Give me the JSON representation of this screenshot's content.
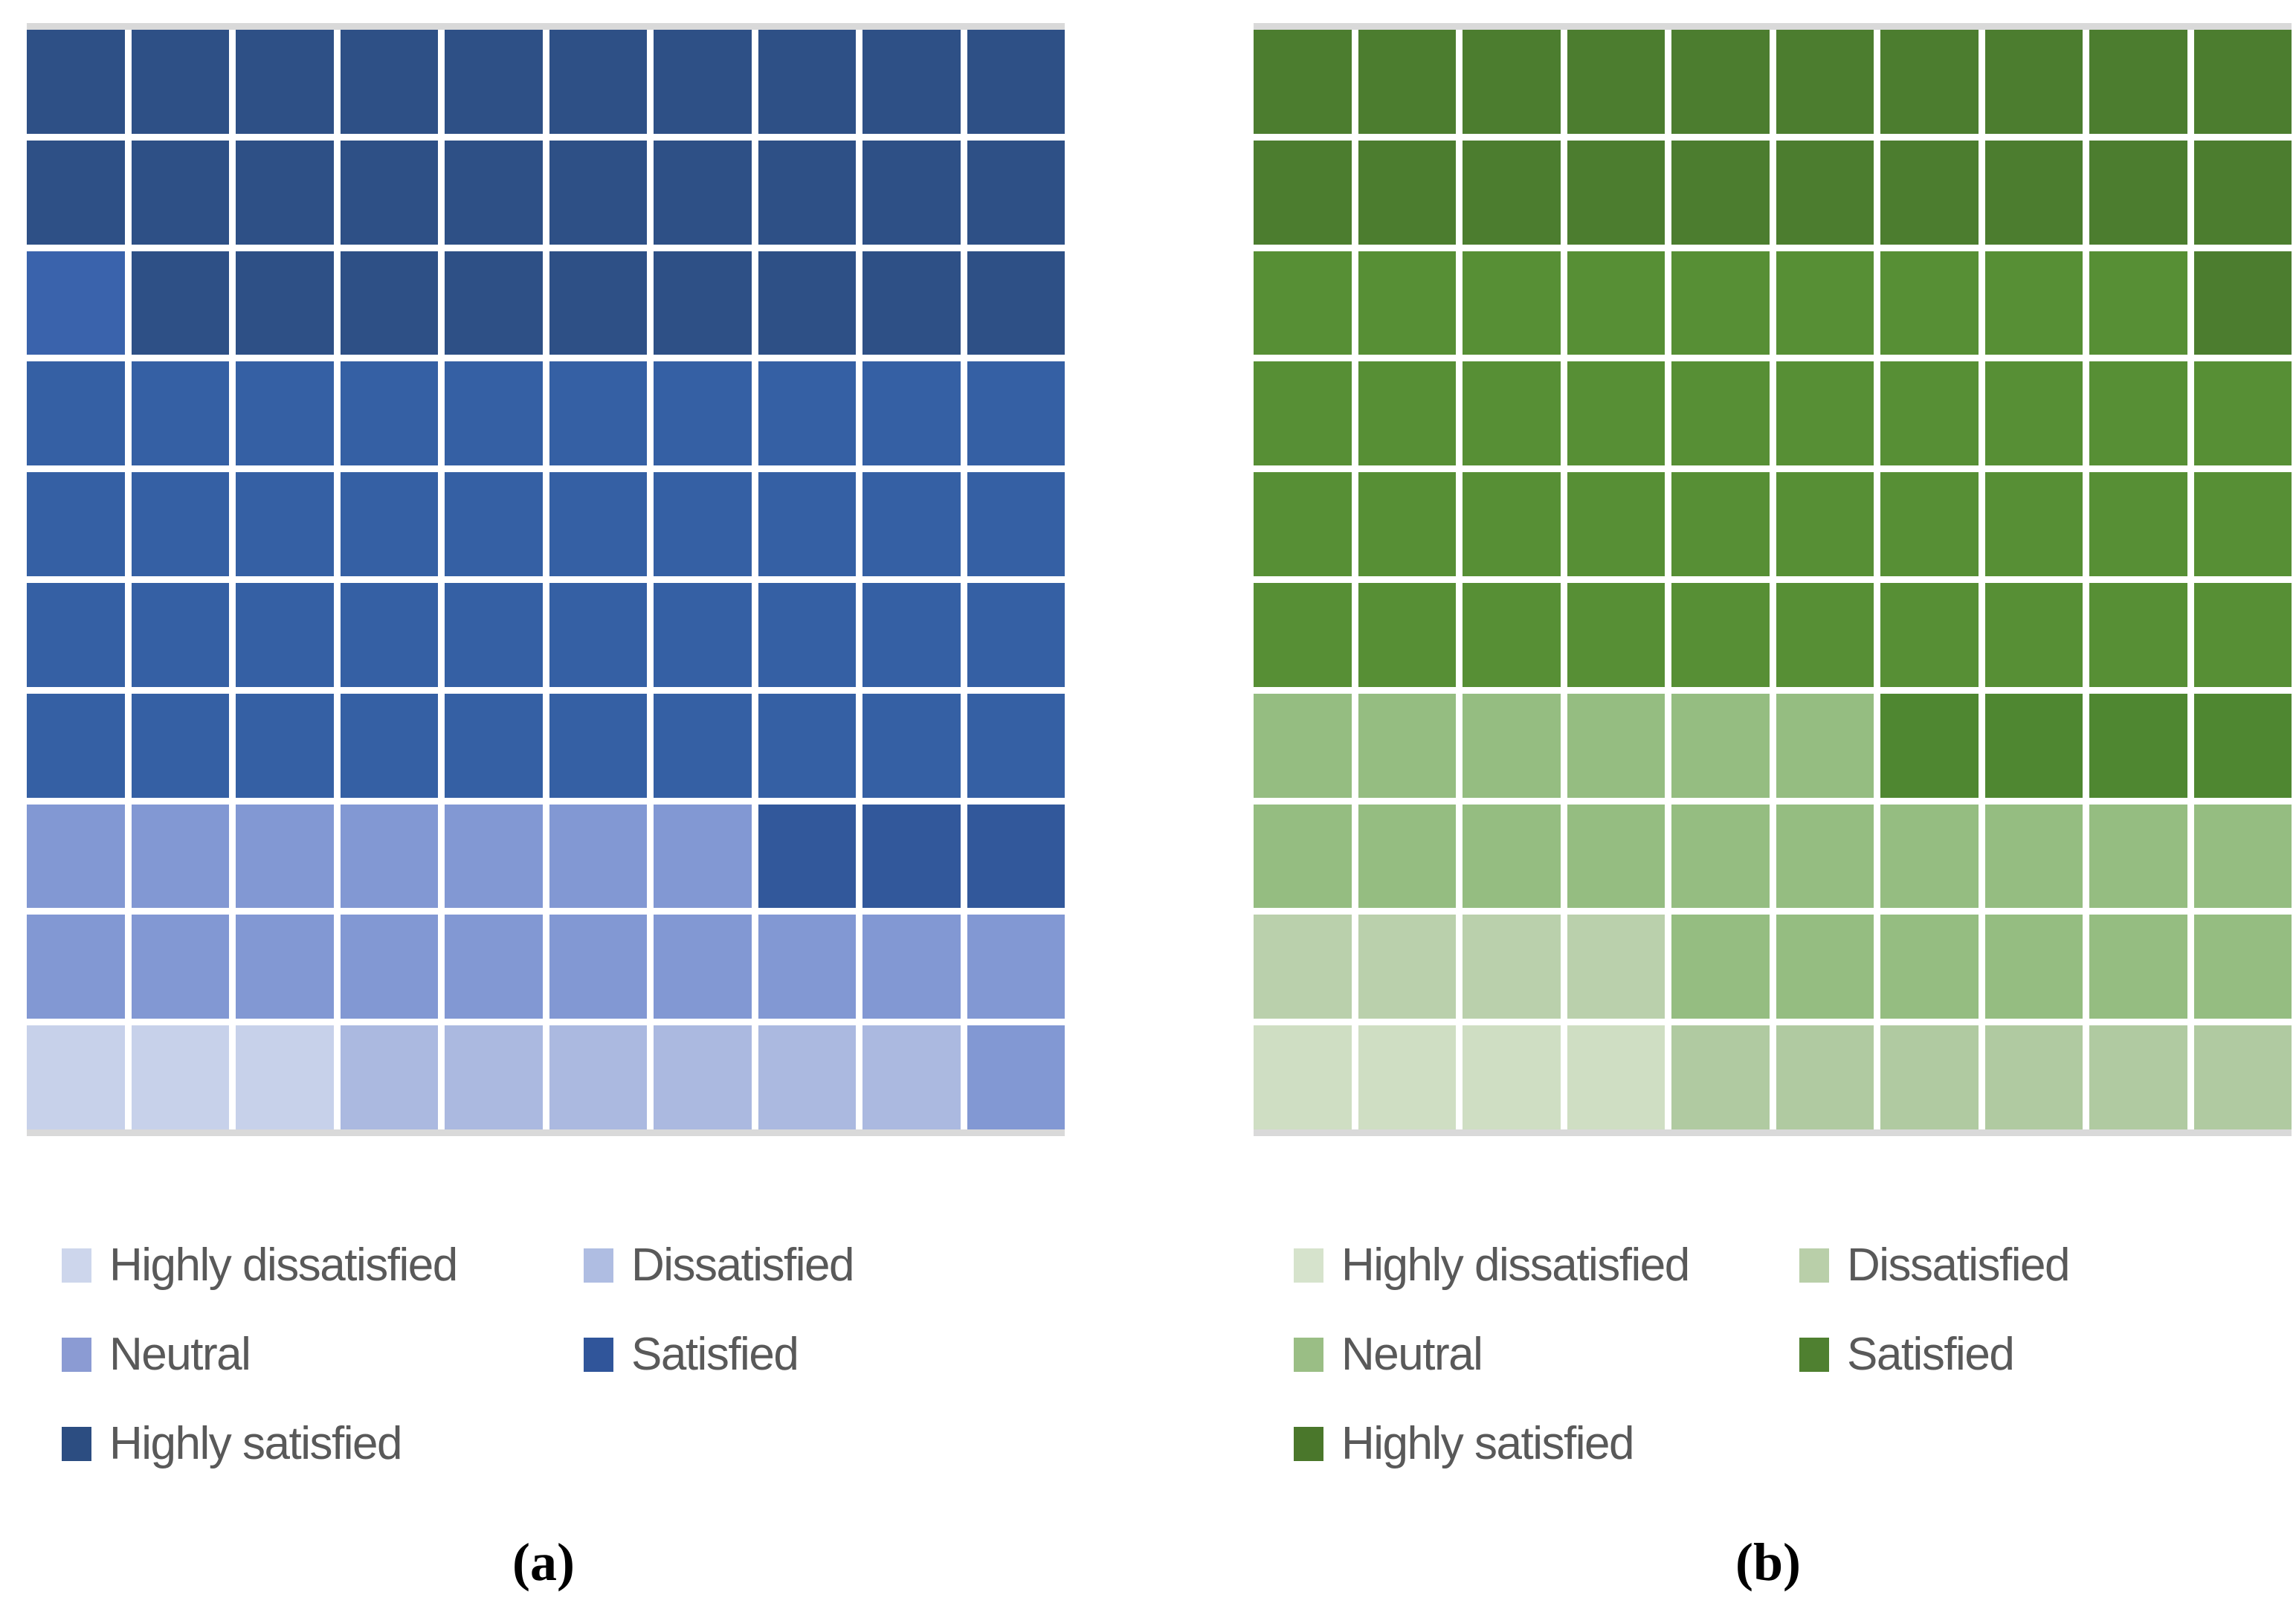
{
  "figure": {
    "background": "#FFFFFF",
    "border_color": "#D9D9D9",
    "legend_text_color": "#595959",
    "panels": [
      {
        "caption": "(a)",
        "palette": {
          "HS": "#2E5086",
          "S": "#3560A4",
          "S3": "#3A63AC",
          "S2": "#32589B",
          "N": "#8298D3",
          "D": "#ABB9E0",
          "HD": "#C7D1EA"
        },
        "grid_rows": [
          [
            "HS",
            "HS",
            "HS",
            "HS",
            "HS",
            "HS",
            "HS",
            "HS",
            "HS",
            "HS"
          ],
          [
            "HS",
            "HS",
            "HS",
            "HS",
            "HS",
            "HS",
            "HS",
            "HS",
            "HS",
            "HS"
          ],
          [
            "S3",
            "HS",
            "HS",
            "HS",
            "HS",
            "HS",
            "HS",
            "HS",
            "HS",
            "HS"
          ],
          [
            "S",
            "S",
            "S",
            "S",
            "S",
            "S",
            "S",
            "S",
            "S",
            "S"
          ],
          [
            "S",
            "S",
            "S",
            "S",
            "S",
            "S",
            "S",
            "S",
            "S",
            "S"
          ],
          [
            "S",
            "S",
            "S",
            "S",
            "S",
            "S",
            "S",
            "S",
            "S",
            "S"
          ],
          [
            "S",
            "S",
            "S",
            "S",
            "S",
            "S",
            "S",
            "S",
            "S",
            "S"
          ],
          [
            "N",
            "N",
            "N",
            "N",
            "N",
            "N",
            "N",
            "S2",
            "S2",
            "S2"
          ],
          [
            "N",
            "N",
            "N",
            "N",
            "N",
            "N",
            "N",
            "N",
            "N",
            "N"
          ],
          [
            "HD",
            "HD",
            "HD",
            "D",
            "D",
            "D",
            "D",
            "D",
            "D",
            "N"
          ]
        ],
        "legend": [
          {
            "label": "Highly dissatisfied",
            "color": "#CDD6EC",
            "col": 0,
            "row": 0
          },
          {
            "label": "Dissatisfied",
            "color": "#AFBDE2",
            "col": 1,
            "row": 0
          },
          {
            "label": "Neutral",
            "color": "#8B9BD3",
            "col": 0,
            "row": 1
          },
          {
            "label": "Satisfied",
            "color": "#30559A",
            "col": 1,
            "row": 1
          },
          {
            "label": "Highly satisfied",
            "color": "#2C4D81",
            "col": 0,
            "row": 2
          }
        ]
      },
      {
        "caption": "(b)",
        "palette": {
          "HS": "#4C7D2F",
          "S": "#578F35",
          "S2": "#4F8731",
          "N": "#95BD81",
          "D": "#BAD0AC",
          "D2": "#B0CAA1",
          "HD": "#CFDEC3"
        },
        "grid_rows": [
          [
            "HS",
            "HS",
            "HS",
            "HS",
            "HS",
            "HS",
            "HS",
            "HS",
            "HS",
            "HS"
          ],
          [
            "HS",
            "HS",
            "HS",
            "HS",
            "HS",
            "HS",
            "HS",
            "HS",
            "HS",
            "HS"
          ],
          [
            "S",
            "S",
            "S",
            "S",
            "S",
            "S",
            "S",
            "S",
            "S",
            "HS"
          ],
          [
            "S",
            "S",
            "S",
            "S",
            "S",
            "S",
            "S",
            "S",
            "S",
            "S"
          ],
          [
            "S",
            "S",
            "S",
            "S",
            "S",
            "S",
            "S",
            "S",
            "S",
            "S"
          ],
          [
            "S",
            "S",
            "S",
            "S",
            "S",
            "S",
            "S",
            "S",
            "S",
            "S"
          ],
          [
            "N",
            "N",
            "N",
            "N",
            "N",
            "N",
            "S2",
            "S2",
            "S2",
            "S2"
          ],
          [
            "N",
            "N",
            "N",
            "N",
            "N",
            "N",
            "N",
            "N",
            "N",
            "N"
          ],
          [
            "D",
            "D",
            "D",
            "D",
            "N",
            "N",
            "N",
            "N",
            "N",
            "N"
          ],
          [
            "HD",
            "HD",
            "HD",
            "HD",
            "D2",
            "D2",
            "D2",
            "D2",
            "D2",
            "D2"
          ]
        ],
        "legend": [
          {
            "label": "Highly dissatisfied",
            "color": "#D6E3CC",
            "col": 0,
            "row": 0
          },
          {
            "label": "Dissatisfied",
            "color": "#B9CFA9",
            "col": 1,
            "row": 0
          },
          {
            "label": "Neutral",
            "color": "#9ABE85",
            "col": 0,
            "row": 1
          },
          {
            "label": "Satisfied",
            "color": "#4F8030",
            "col": 1,
            "row": 1
          },
          {
            "label": "Highly satisfied",
            "color": "#4A772B",
            "col": 0,
            "row": 2
          }
        ]
      }
    ]
  },
  "chart_data": [
    {
      "type": "waffle",
      "title": "(a)",
      "grid": "10x10",
      "unit": "1 square = 1% of responses",
      "categories": [
        "Highly dissatisfied",
        "Dissatisfied",
        "Neutral",
        "Satisfied",
        "Highly satisfied"
      ],
      "values": [
        3,
        6,
        18,
        44,
        29
      ],
      "fill_order": "bottom-left, left-to-right, upward",
      "legend_position": "bottom",
      "color_scheme": "blue"
    },
    {
      "type": "waffle",
      "title": "(b)",
      "grid": "10x10",
      "unit": "1 square = 1% of responses",
      "categories": [
        "Highly dissatisfied",
        "Dissatisfied",
        "Neutral",
        "Satisfied",
        "Highly satisfied"
      ],
      "values": [
        4,
        10,
        22,
        43,
        21
      ],
      "fill_order": "bottom-left, left-to-right, upward",
      "legend_position": "bottom",
      "color_scheme": "green"
    }
  ]
}
